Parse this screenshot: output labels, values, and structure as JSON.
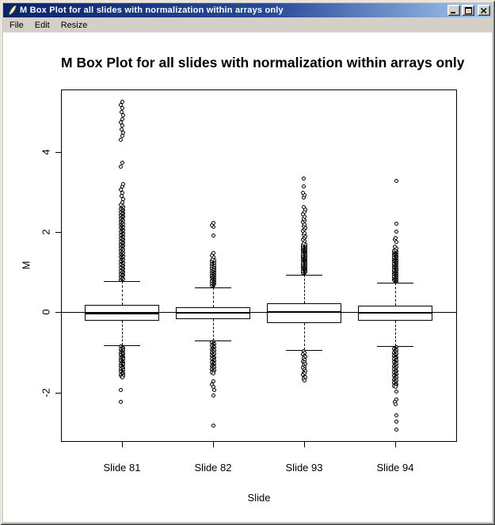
{
  "window": {
    "title": "M Box Plot for all slides with normalization within arrays only",
    "menu": [
      "File",
      "Edit",
      "Resize"
    ],
    "controls": [
      "minimize-icon",
      "maximize-icon",
      "close-icon"
    ],
    "titlebar_gradient": [
      "#0a246a",
      "#a6caf0"
    ],
    "chrome_color": "#d4d0c8"
  },
  "chart_data": {
    "type": "boxplot",
    "title": "M Box Plot for all slides with normalization within arrays only",
    "xlabel": "Slide",
    "ylabel": "M",
    "ylim": [
      -3.23,
      5.55
    ],
    "yticks": [
      -2,
      0,
      2,
      4
    ],
    "grid": false,
    "reference_line_y": 0,
    "categories": [
      "Slide 81",
      "Slide 82",
      "Slide 93",
      "Slide 94"
    ],
    "series": [
      {
        "name": "Slide 81",
        "median": -0.03,
        "q1": -0.21,
        "q3": 0.19,
        "whisker_low": -0.82,
        "whisker_high": 0.77,
        "outliers_high": [
          [
            0.8,
            2.65,
            115
          ],
          [
            2.67,
            3.2,
            8
          ],
          [
            3.62,
            3.72,
            2
          ],
          [
            4.3,
            5.25,
            12
          ]
        ],
        "outliers_low": [
          [
            -0.86,
            -1.62,
            55
          ],
          [
            -1.93,
            -1.93,
            1
          ],
          [
            -2.24,
            -2.24,
            1
          ]
        ]
      },
      {
        "name": "Slide 82",
        "median": -0.01,
        "q1": -0.17,
        "q3": 0.13,
        "whisker_low": -0.7,
        "whisker_high": 0.62,
        "outliers_high": [
          [
            0.66,
            1.32,
            55
          ],
          [
            1.38,
            1.47,
            3
          ],
          [
            1.9,
            1.9,
            1
          ],
          [
            2.12,
            2.22,
            3
          ]
        ],
        "outliers_low": [
          [
            -0.74,
            -1.52,
            48
          ],
          [
            -1.73,
            -1.93,
            4
          ],
          [
            -2.08,
            -2.08,
            1
          ],
          [
            -2.83,
            -2.83,
            1
          ]
        ]
      },
      {
        "name": "Slide 93",
        "median": 0.0,
        "q1": -0.27,
        "q3": 0.23,
        "whisker_low": -0.95,
        "whisker_high": 0.94,
        "outliers_high": [
          [
            0.97,
            1.7,
            85
          ],
          [
            1.72,
            2.28,
            14
          ],
          [
            2.32,
            2.62,
            6
          ],
          [
            2.85,
            2.97,
            3
          ],
          [
            3.14,
            3.14,
            1
          ],
          [
            3.34,
            3.34,
            1
          ]
        ],
        "outliers_low": [
          [
            -0.98,
            -1.7,
            22
          ]
        ]
      },
      {
        "name": "Slide 94",
        "median": -0.02,
        "q1": -0.21,
        "q3": 0.17,
        "whisker_low": -0.84,
        "whisker_high": 0.74,
        "outliers_high": [
          [
            0.77,
            1.55,
            75
          ],
          [
            1.6,
            1.64,
            2
          ],
          [
            1.76,
            1.86,
            3
          ],
          [
            2.0,
            2.0,
            1
          ],
          [
            2.2,
            2.2,
            1
          ],
          [
            3.28,
            3.28,
            1
          ]
        ],
        "outliers_low": [
          [
            -0.87,
            -1.86,
            60
          ],
          [
            -1.98,
            -1.98,
            1
          ],
          [
            -2.18,
            -2.3,
            3
          ],
          [
            -2.57,
            -2.57,
            1
          ],
          [
            -2.72,
            -2.72,
            1
          ],
          [
            -2.92,
            -2.92,
            1
          ]
        ]
      }
    ]
  }
}
